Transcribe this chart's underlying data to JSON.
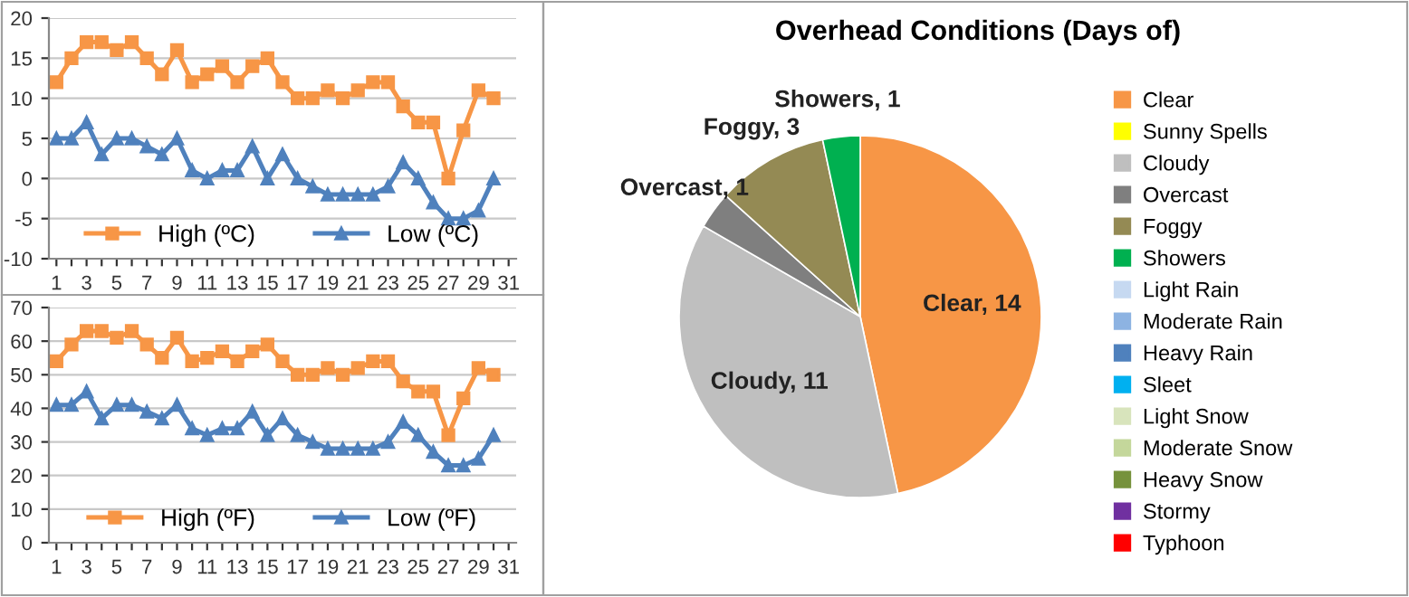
{
  "chart_data": [
    {
      "type": "line",
      "categories": [
        "1",
        null,
        "3",
        null,
        "5",
        null,
        "7",
        null,
        "9",
        null,
        "11",
        null,
        "13",
        null,
        "15",
        null,
        "17",
        null,
        "19",
        null,
        "21",
        null,
        "23",
        null,
        "25",
        null,
        "27",
        null,
        "29",
        null,
        "31"
      ],
      "series": [
        {
          "name": "High (ºC)",
          "color": "#f79646",
          "marker": "square",
          "values": [
            12,
            15,
            17,
            17,
            16,
            17,
            15,
            13,
            16,
            12,
            13,
            14,
            12,
            14,
            15,
            12,
            10,
            10,
            11,
            10,
            11,
            12,
            12,
            9,
            7,
            7,
            0,
            6,
            11,
            10,
            null
          ]
        },
        {
          "name": "Low (ºC)",
          "color": "#4f81bd",
          "marker": "triangle",
          "values": [
            5,
            5,
            7,
            3,
            5,
            5,
            4,
            3,
            5,
            1,
            0,
            1,
            1,
            4,
            0,
            3,
            0,
            -1,
            -2,
            -2,
            -2,
            -2,
            -1,
            2,
            0,
            -3,
            -5,
            -5,
            -4,
            0,
            null
          ]
        }
      ],
      "ylim": [
        -10,
        20
      ],
      "yticks": [
        -10,
        -5,
        0,
        5,
        10,
        15,
        20
      ],
      "grid": "y",
      "legend": "bottom",
      "line_style": "solid"
    },
    {
      "type": "line",
      "categories": [
        "1",
        null,
        "3",
        null,
        "5",
        null,
        "7",
        null,
        "9",
        null,
        "11",
        null,
        "13",
        null,
        "15",
        null,
        "17",
        null,
        "19",
        null,
        "21",
        null,
        "23",
        null,
        "25",
        null,
        "27",
        null,
        "29",
        null,
        "31"
      ],
      "series": [
        {
          "name": "High (ºF)",
          "color": "#f79646",
          "marker": "square",
          "values": [
            54,
            59,
            63,
            63,
            61,
            63,
            59,
            55,
            61,
            54,
            55,
            57,
            54,
            57,
            59,
            54,
            50,
            50,
            52,
            50,
            52,
            54,
            54,
            48,
            45,
            45,
            32,
            43,
            52,
            50,
            null
          ]
        },
        {
          "name": "Low (ºF)",
          "color": "#4f81bd",
          "marker": "triangle",
          "values": [
            41,
            41,
            45,
            37,
            41,
            41,
            39,
            37,
            41,
            34,
            32,
            34,
            34,
            39,
            32,
            37,
            32,
            30,
            28,
            28,
            28,
            28,
            30,
            36,
            32,
            27,
            23,
            23,
            25,
            32,
            null
          ]
        }
      ],
      "ylim": [
        0,
        70
      ],
      "yticks": [
        0,
        10,
        20,
        30,
        40,
        50,
        60,
        70
      ],
      "grid": "y",
      "legend": "bottom",
      "line_style": "solid"
    },
    {
      "type": "pie",
      "title": "Overhead Conditions (Days of)",
      "categories": [
        "Clear",
        "Sunny Spells",
        "Cloudy",
        "Overcast",
        "Foggy",
        "Showers",
        "Light Rain",
        "Moderate Rain",
        "Heavy Rain",
        "Sleet",
        "Light Snow",
        "Moderate Snow",
        "Heavy Snow",
        "Stormy",
        "Typhoon"
      ],
      "values": [
        14,
        0,
        11,
        1,
        3,
        1,
        0,
        0,
        0,
        0,
        0,
        0,
        0,
        0,
        0
      ],
      "colors": [
        "#f79646",
        "#ffff00",
        "#bfbfbf",
        "#7f7f7f",
        "#948a54",
        "#00b050",
        "#c6d9f1",
        "#8db3e2",
        "#4f81bd",
        "#00b0f0",
        "#d8e4bc",
        "#c4d79b",
        "#76923c",
        "#7030a0",
        "#ff0000"
      ],
      "value_labels": [
        "Clear, 14",
        null,
        "Cloudy, 11",
        "Overcast, 1",
        "Foggy, 3",
        "Showers, 1",
        null,
        null,
        null,
        null,
        null,
        null,
        null,
        null,
        null
      ],
      "legend": "right"
    }
  ]
}
